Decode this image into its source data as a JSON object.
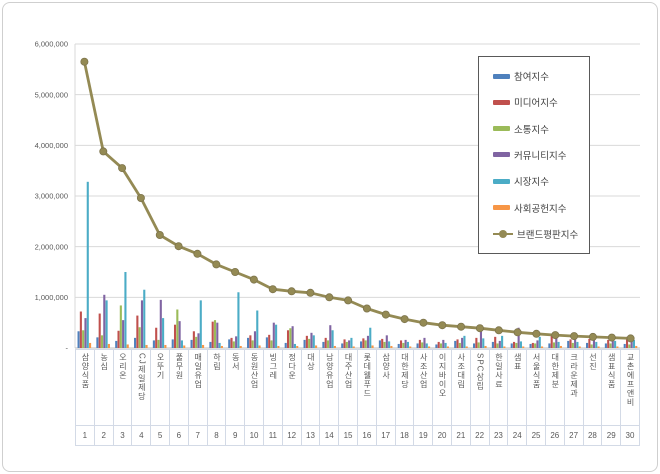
{
  "figure": {
    "background": "#ffffff",
    "frame_border": "#cfcfcf",
    "gridline_color": "#d9d9d9",
    "axis_color": "#bfbfbf",
    "tick_text_color": "#595959",
    "legend_border": "#595959",
    "legend_text_color": "#3f3f3f"
  },
  "chart_data": {
    "type": "bar",
    "title": "",
    "xlabel": "",
    "ylabel": "",
    "ylim": [
      0,
      6000000
    ],
    "ytick_interval": 1000000,
    "ytick_labels": [
      "-",
      "1,000,000",
      "2,000,000",
      "3,000,000",
      "4,000,000",
      "5,000,000",
      "6,000,000"
    ],
    "grid": true,
    "legend_position": "upper-right-inside",
    "categories": [
      "삼양식품",
      "농심",
      "오리온",
      "CJ제일제당",
      "오뚜기",
      "풀무원",
      "매일유업",
      "하림",
      "동서",
      "동원산업",
      "빙그레",
      "정다운",
      "대상",
      "남양유업",
      "대주산업",
      "롯데웰푸드",
      "삼양사",
      "대한제당",
      "사조산업",
      "이지바이오",
      "사조대림",
      "SPC삼립",
      "한일사료",
      "샘표",
      "서울식품",
      "대한제분",
      "크라운제과",
      "선진",
      "샘표식품",
      "교촌에프앤비"
    ],
    "ranks": [
      "1",
      "2",
      "3",
      "4",
      "5",
      "6",
      "7",
      "8",
      "9",
      "10",
      "11",
      "12",
      "13",
      "14",
      "15",
      "16",
      "17",
      "18",
      "19",
      "20",
      "21",
      "22",
      "23",
      "24",
      "25",
      "26",
      "27",
      "28",
      "29",
      "30"
    ],
    "series": [
      {
        "name": "참여지수",
        "type": "bar",
        "color": "#4F81BD",
        "values": [
          330000,
          210000,
          140000,
          200000,
          150000,
          170000,
          160000,
          120000,
          170000,
          200000,
          210000,
          100000,
          160000,
          120000,
          90000,
          130000,
          150000,
          80000,
          90000,
          70000,
          140000,
          90000,
          120000,
          90000,
          80000,
          90000,
          140000,
          100000,
          90000,
          80000
        ]
      },
      {
        "name": "미디어지수",
        "type": "bar",
        "color": "#C0504D",
        "values": [
          720000,
          680000,
          340000,
          640000,
          400000,
          460000,
          330000,
          520000,
          200000,
          250000,
          260000,
          350000,
          240000,
          200000,
          170000,
          190000,
          180000,
          150000,
          160000,
          120000,
          170000,
          200000,
          220000,
          120000,
          100000,
          270000,
          170000,
          180000,
          160000,
          220000
        ]
      },
      {
        "name": "소통지수",
        "type": "bar",
        "color": "#9BBB59",
        "values": [
          350000,
          250000,
          840000,
          410000,
          160000,
          760000,
          220000,
          550000,
          130000,
          150000,
          150000,
          390000,
          180000,
          150000,
          120000,
          150000,
          120000,
          100000,
          110000,
          90000,
          100000,
          110000,
          90000,
          100000,
          90000,
          110000,
          100000,
          70000,
          90000,
          70000
        ]
      },
      {
        "name": "커뮤니티지수",
        "type": "bar",
        "color": "#8064A2",
        "values": [
          590000,
          1050000,
          550000,
          940000,
          950000,
          530000,
          290000,
          500000,
          230000,
          330000,
          500000,
          430000,
          300000,
          450000,
          150000,
          240000,
          250000,
          160000,
          200000,
          160000,
          200000,
          380000,
          140000,
          400000,
          150000,
          290000,
          200000,
          250000,
          220000,
          130000
        ]
      },
      {
        "name": "시장지수",
        "type": "bar",
        "color": "#4BACC6",
        "values": [
          3280000,
          940000,
          1500000,
          1150000,
          590000,
          150000,
          940000,
          100000,
          1100000,
          740000,
          460000,
          80000,
          250000,
          350000,
          200000,
          400000,
          130000,
          120000,
          90000,
          100000,
          240000,
          190000,
          240000,
          130000,
          220000,
          120000,
          120000,
          120000,
          140000,
          160000
        ]
      },
      {
        "name": "사회공헌지수",
        "type": "bar",
        "color": "#F79646",
        "values": [
          100000,
          80000,
          70000,
          60000,
          60000,
          50000,
          60000,
          40000,
          40000,
          50000,
          40000,
          40000,
          50000,
          40000,
          30000,
          50000,
          40000,
          30000,
          30000,
          30000,
          30000,
          40000,
          30000,
          30000,
          30000,
          40000,
          30000,
          30000,
          30000,
          40000
        ]
      },
      {
        "name": "브랜드평판지수",
        "type": "line",
        "color": "#948A54",
        "marker_edge": "#7d744c",
        "values": [
          5650000,
          3880000,
          3550000,
          2960000,
          2230000,
          2010000,
          1860000,
          1650000,
          1500000,
          1350000,
          1160000,
          1120000,
          1090000,
          1000000,
          940000,
          780000,
          660000,
          570000,
          500000,
          450000,
          420000,
          390000,
          350000,
          310000,
          280000,
          255000,
          235000,
          220000,
          205000,
          190000
        ]
      }
    ]
  }
}
